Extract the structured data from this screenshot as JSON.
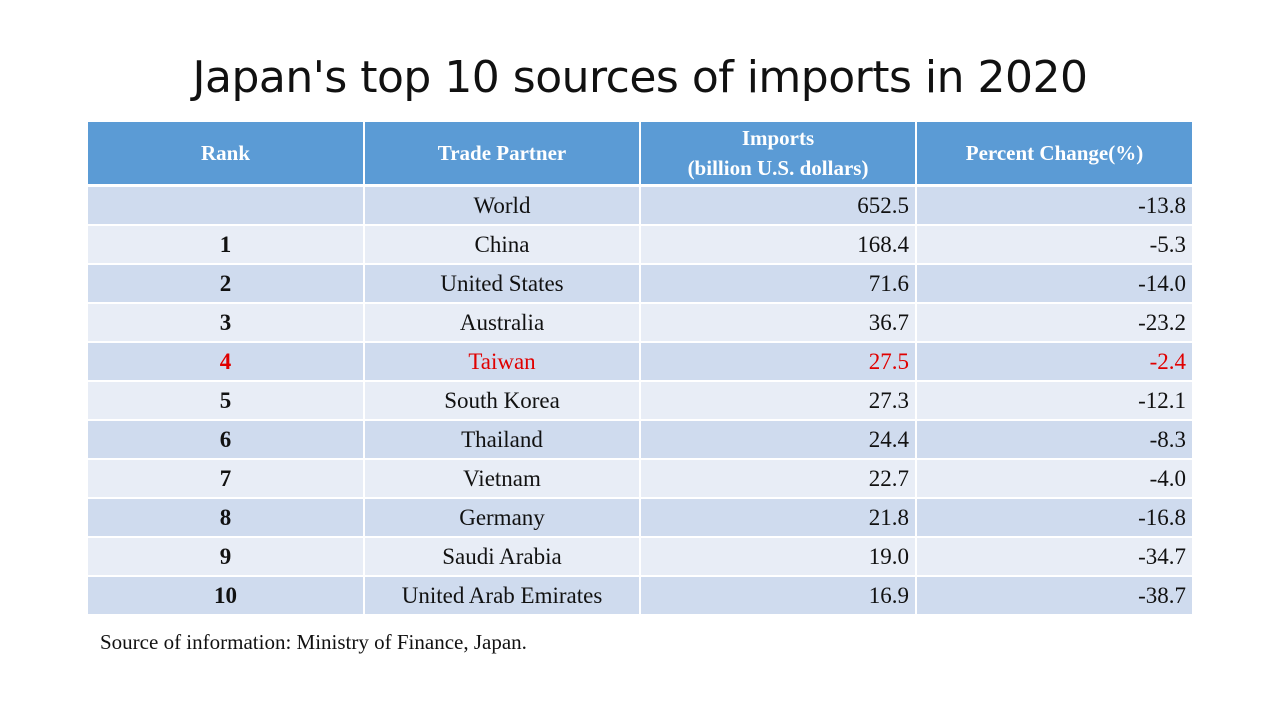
{
  "chart_data": {
    "type": "table",
    "title": "Japan's top 10 sources of imports in 2020",
    "columns": [
      {
        "label": "Rank"
      },
      {
        "label": "Trade Partner"
      },
      {
        "label_line1": "Imports",
        "label_line2": "(billion U.S. dollars)"
      },
      {
        "label": "Percent Change(%)"
      }
    ],
    "rows": [
      {
        "rank": "",
        "partner": "World",
        "imports": "652.5",
        "change": "-13.8",
        "highlight": false
      },
      {
        "rank": "1",
        "partner": "China",
        "imports": "168.4",
        "change": "-5.3",
        "highlight": false
      },
      {
        "rank": "2",
        "partner": "United States",
        "imports": "71.6",
        "change": "-14.0",
        "highlight": false
      },
      {
        "rank": "3",
        "partner": "Australia",
        "imports": "36.7",
        "change": "-23.2",
        "highlight": false
      },
      {
        "rank": "4",
        "partner": "Taiwan",
        "imports": "27.5",
        "change": "-2.4",
        "highlight": true
      },
      {
        "rank": "5",
        "partner": "South Korea",
        "imports": "27.3",
        "change": "-12.1",
        "highlight": false
      },
      {
        "rank": "6",
        "partner": "Thailand",
        "imports": "24.4",
        "change": "-8.3",
        "highlight": false
      },
      {
        "rank": "7",
        "partner": "Vietnam",
        "imports": "22.7",
        "change": "-4.0",
        "highlight": false
      },
      {
        "rank": "8",
        "partner": "Germany",
        "imports": "21.8",
        "change": "-16.8",
        "highlight": false
      },
      {
        "rank": "9",
        "partner": "Saudi Arabia",
        "imports": "19.0",
        "change": "-34.7",
        "highlight": false
      },
      {
        "rank": "10",
        "partner": "United Arab Emirates",
        "imports": "16.9",
        "change": "-38.7",
        "highlight": false
      }
    ],
    "source": "Source of information: Ministry of Finance, Japan.",
    "colors": {
      "header_bg": "#5b9bd5",
      "row_dark": "#cfdbee",
      "row_light": "#e8edf6",
      "highlight_text": "#e00000"
    }
  }
}
